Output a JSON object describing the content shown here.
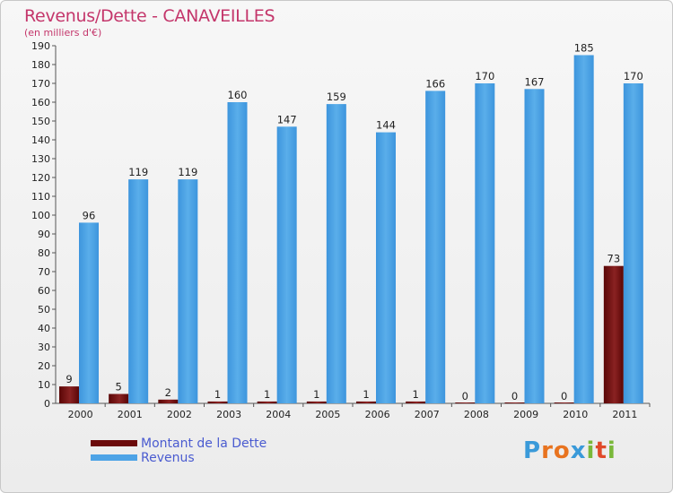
{
  "header": {
    "title": "Revenus/Dette - CANAVEILLES",
    "subtitle": "(en milliers d'€)"
  },
  "legend": {
    "items": [
      {
        "label": "Montant de la Dette",
        "color": "#6b0a0a"
      },
      {
        "label": "Revenus",
        "color": "#4da3e6"
      }
    ]
  },
  "logo": {
    "text": "Proxiti",
    "letters": [
      {
        "ch": "P",
        "color": "#3a9ad9"
      },
      {
        "ch": "r",
        "color": "#e8731f"
      },
      {
        "ch": "o",
        "color": "#e8731f"
      },
      {
        "ch": "x",
        "color": "#3a9ad9"
      },
      {
        "ch": "i",
        "color": "#7ab83a"
      },
      {
        "ch": "t",
        "color": "#e04a2a"
      },
      {
        "ch": "i",
        "color": "#7ab83a"
      }
    ]
  },
  "chart_data": {
    "type": "bar",
    "title": "Revenus/Dette - CANAVEILLES",
    "subtitle": "(en milliers d'€)",
    "categories": [
      "2000",
      "2001",
      "2002",
      "2003",
      "2004",
      "2005",
      "2006",
      "2007",
      "2008",
      "2009",
      "2010",
      "2011"
    ],
    "series": [
      {
        "name": "Montant de la Dette",
        "values": [
          9,
          5,
          2,
          1,
          1,
          1,
          1,
          1,
          0,
          0,
          0,
          73
        ]
      },
      {
        "name": "Revenus",
        "values": [
          96,
          119,
          119,
          160,
          147,
          159,
          144,
          166,
          170,
          167,
          185,
          170
        ]
      }
    ],
    "ylim": [
      0,
      190
    ],
    "ytick_step": 10,
    "grid": false,
    "legend_position": "bottom-left"
  }
}
